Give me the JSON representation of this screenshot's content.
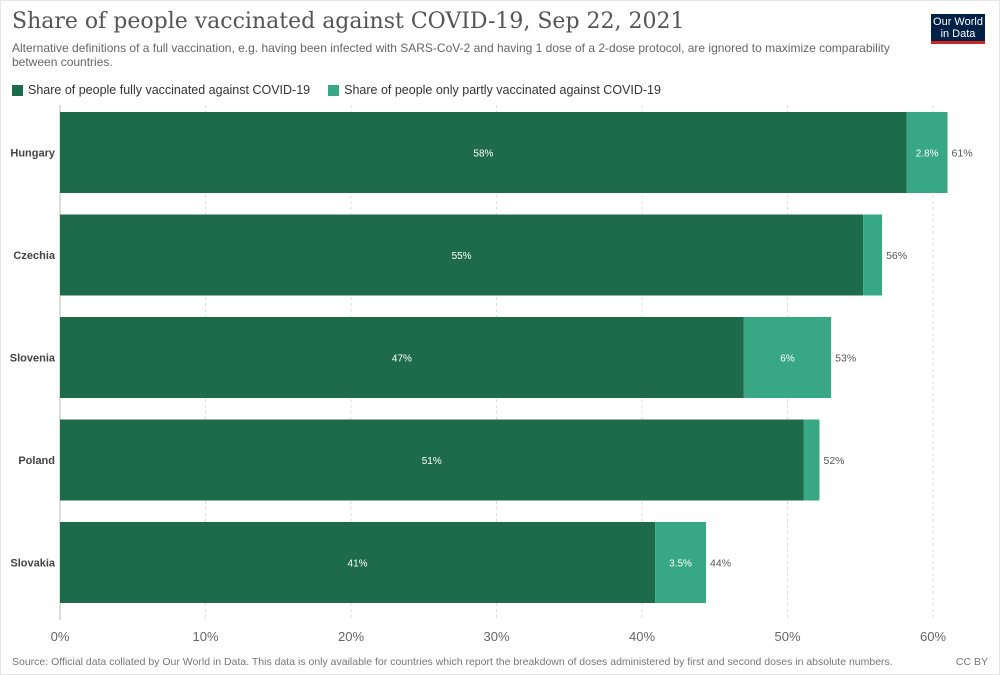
{
  "title": "Share of people vaccinated against COVID-19, Sep 22, 2021",
  "subtitle": "Alternative definitions of a full vaccination, e.g. having been infected with SARS-CoV-2 and having 1 dose of a 2-dose protocol, are ignored to maximize comparability between countries.",
  "logo": {
    "line1": "Our World",
    "line2": "in Data"
  },
  "colors": {
    "full": "#1d6b4a",
    "partial": "#37a883",
    "grid": "#dddddd"
  },
  "footer": {
    "source": "Source: Official data collated by Our World in Data. This data is only available for countries which report the breakdown of doses administered by first and second doses in absolute numbers.",
    "license": "CC BY"
  },
  "chart_data": {
    "type": "bar",
    "orientation": "horizontal",
    "stacked": true,
    "title": "Share of people vaccinated against COVID-19, Sep 22, 2021",
    "xlim": [
      0,
      65
    ],
    "xticks": [
      0,
      10,
      20,
      30,
      40,
      50,
      60
    ],
    "xtick_labels": [
      "0%",
      "10%",
      "20%",
      "30%",
      "40%",
      "50%",
      "60%"
    ],
    "legend_position": "top-left",
    "categories": [
      "Hungary",
      "Czechia",
      "Slovenia",
      "Poland",
      "Slovakia"
    ],
    "series": [
      {
        "name": "Share of people fully vaccinated against COVID-19",
        "values": [
          58.2,
          55.2,
          47.0,
          51.1,
          40.9
        ],
        "labels": [
          "58%",
          "55%",
          "47%",
          "51%",
          "41%"
        ]
      },
      {
        "name": "Share of people only partly vaccinated against COVID-19",
        "values": [
          2.8,
          1.3,
          6.0,
          1.1,
          3.5
        ],
        "labels": [
          "2.8%",
          "",
          "6%",
          "",
          "3.5%"
        ]
      }
    ],
    "totals": [
      "61%",
      "56%",
      "53%",
      "52%",
      "44%"
    ]
  }
}
